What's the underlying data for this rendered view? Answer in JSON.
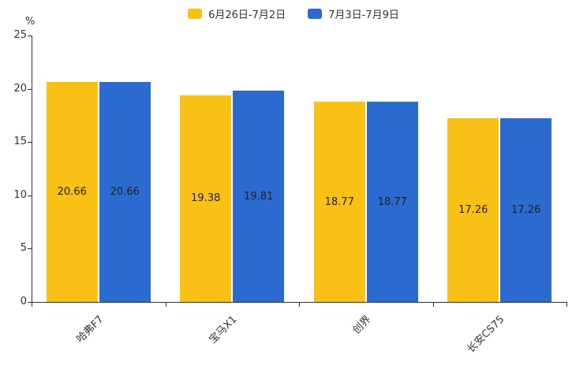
{
  "chart_data": {
    "type": "bar",
    "title": "",
    "categories": [
      "哈弗F7",
      "宝马X1",
      "创界",
      "长安CS75"
    ],
    "series": [
      {
        "name": "6月26日-7月2日",
        "color": "#F9C116",
        "values": [
          20.66,
          19.38,
          18.77,
          17.26
        ]
      },
      {
        "name": "7月3日-7月9日",
        "color": "#2B6BD0",
        "values": [
          20.66,
          19.81,
          18.77,
          17.26
        ]
      }
    ],
    "xlabel": "",
    "ylabel": "%",
    "ylim": [
      0,
      25
    ],
    "yticks": [
      0,
      5,
      10,
      15,
      20,
      25
    ],
    "legend_position": "top",
    "grid": false,
    "value_labels": [
      "20.66",
      "19.38",
      "18.77",
      "17.26",
      "20.66",
      "19.81",
      "18.77",
      "17.26"
    ]
  },
  "colors": {
    "axis": "#333333",
    "text": "#333333",
    "bar_label": "#222222",
    "background": "#ffffff"
  }
}
